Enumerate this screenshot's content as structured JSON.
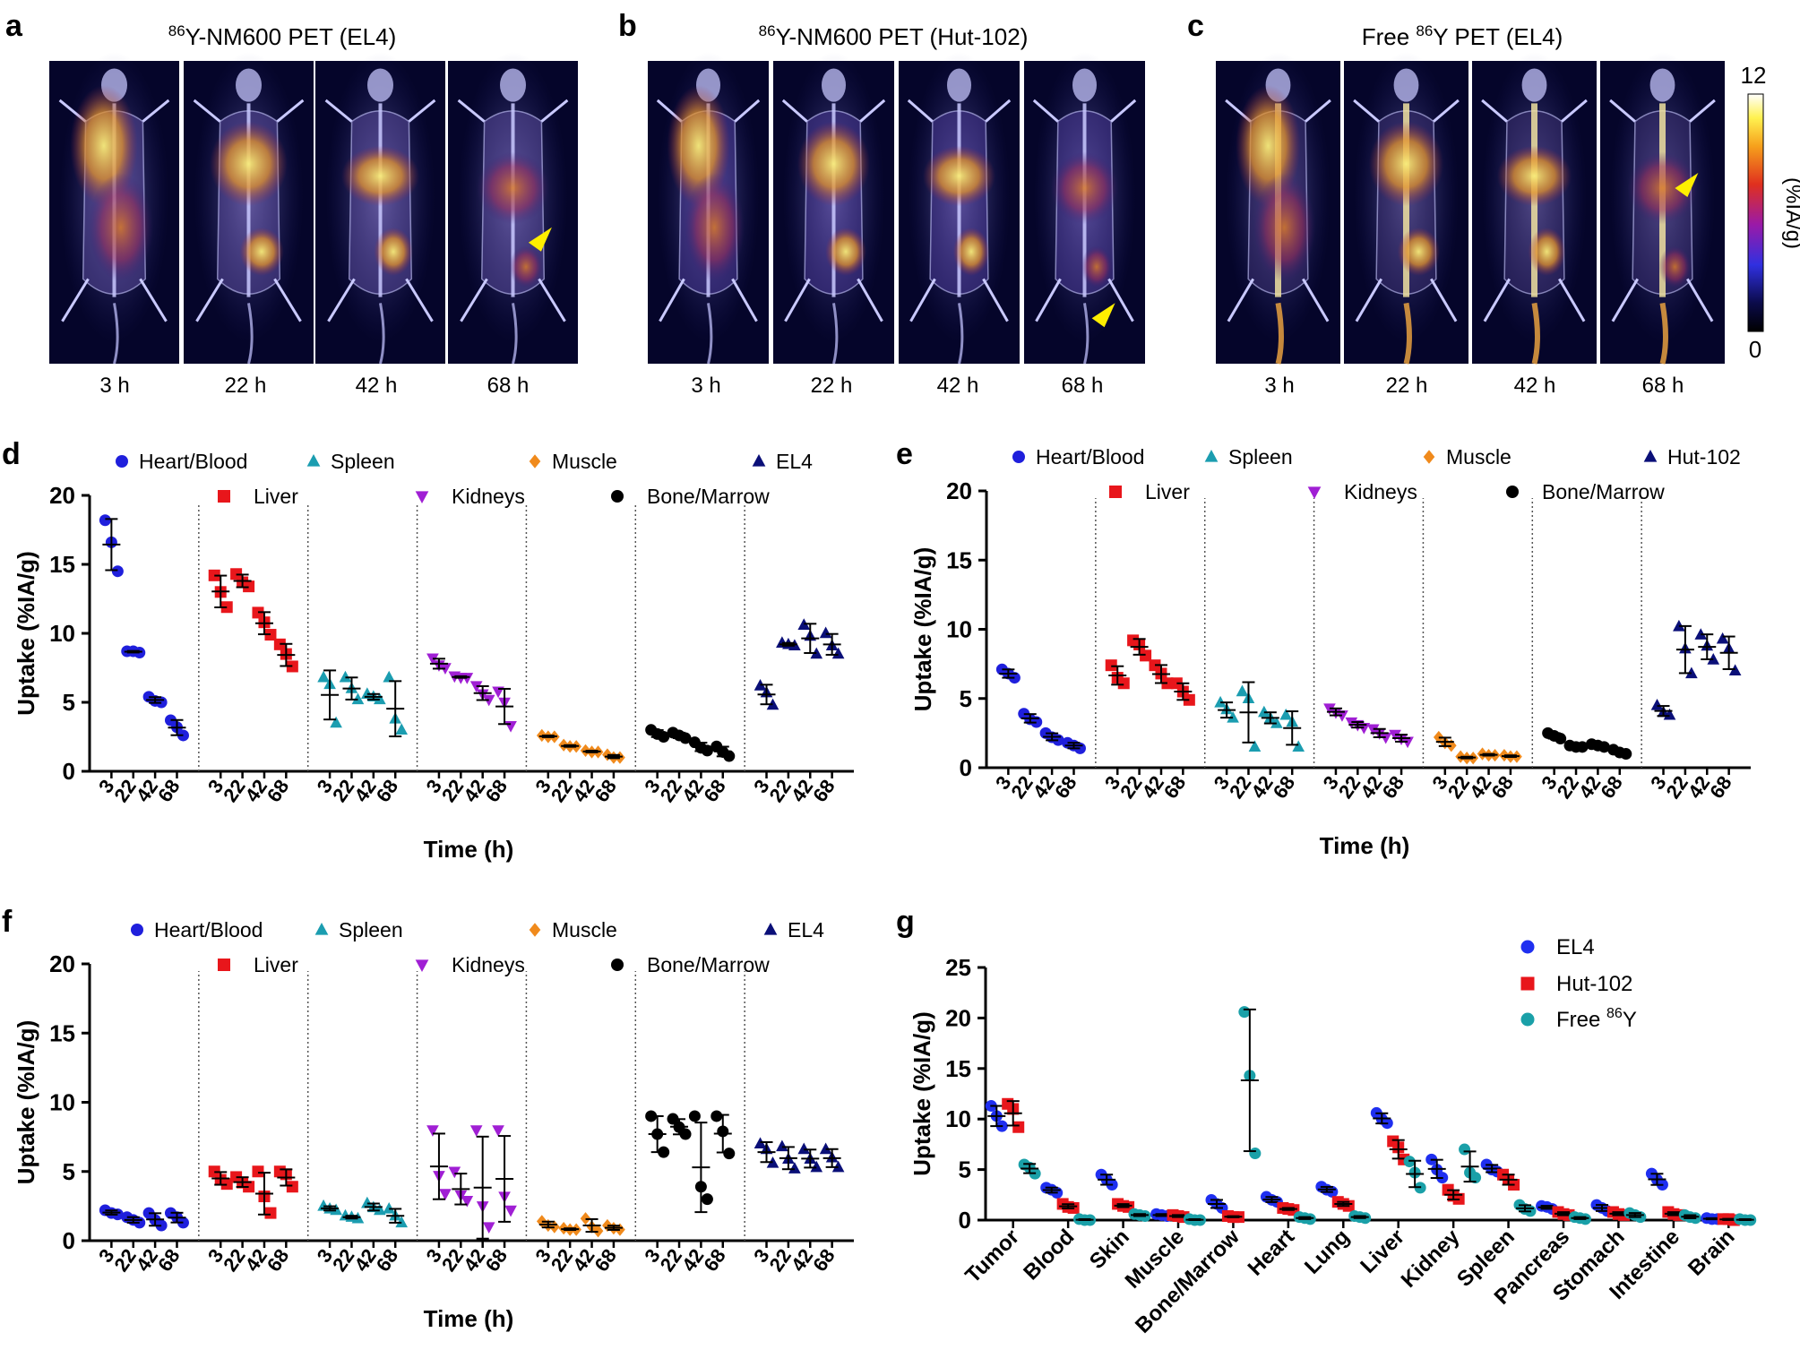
{
  "panel_letters": {
    "a": "a",
    "b": "b",
    "c": "c",
    "d": "d",
    "e": "e",
    "f": "f",
    "g": "g"
  },
  "pet_panels": [
    {
      "letter": "a",
      "title_sup": "86",
      "title_rest": "Y-NM600 PET (EL4)",
      "times": [
        "3 h",
        "22 h",
        "42 h",
        "68 h"
      ],
      "arrow_frame": 3,
      "tail": "normal"
    },
    {
      "letter": "b",
      "title_sup": "86",
      "title_rest": "Y-NM600 PET (Hut-102)",
      "times": [
        "3 h",
        "22 h",
        "42 h",
        "68 h"
      ],
      "arrow_frame": 3,
      "tail": "normal"
    },
    {
      "letter": "c",
      "title_pre": "Free ",
      "title_sup": "86",
      "title_rest": "Y PET (EL4)",
      "times": [
        "3 h",
        "22 h",
        "42 h",
        "68 h"
      ],
      "arrow_frame": 3,
      "tail": "bone"
    }
  ],
  "colorbar": {
    "max_label": "12",
    "min_label": "0",
    "label": "(%IA/g)"
  },
  "colors": {
    "heart": "#1f1fdc",
    "liver": "#e8161b",
    "spleen": "#1b9db0",
    "kidneys": "#a01fd4",
    "muscle": "#f08a1c",
    "bone": "#000000",
    "tumor": "#0a0f78",
    "el4": "#1f2ff0",
    "hut": "#e8161b",
    "free": "#1aa0a8",
    "arrow": "#ffee00"
  },
  "chart_data": [
    {
      "id": "d",
      "type": "scatter",
      "ylabel": "Uptake (%IA/g)",
      "xlabel": "Time (h)",
      "ylim": [
        0,
        20
      ],
      "yticks": [
        "0",
        "5",
        "10",
        "15",
        "20"
      ],
      "timepoints": [
        "3",
        "22",
        "42",
        "68"
      ],
      "legend_row1": [
        "Heart/Blood",
        "Spleen",
        "Muscle",
        "EL4"
      ],
      "legend_row2": [
        "Liver",
        "Kidneys",
        "Bone/Marrow"
      ],
      "series": [
        {
          "name": "Heart/Blood",
          "marker": "circle",
          "color": "#1f1fdc",
          "points": [
            [
              18.2,
              16.6,
              14.5
            ],
            [
              8.7,
              8.7,
              8.6
            ],
            [
              5.4,
              5.1,
              5.0
            ],
            [
              3.7,
              3.2,
              2.6
            ]
          ]
        },
        {
          "name": "Liver",
          "marker": "square",
          "color": "#e8161b",
          "points": [
            [
              14.2,
              13.0,
              11.9
            ],
            [
              14.3,
              13.7,
              13.4
            ],
            [
              11.5,
              10.8,
              9.9
            ],
            [
              9.2,
              8.5,
              7.6
            ]
          ]
        },
        {
          "name": "Spleen",
          "marker": "triangle",
          "color": "#1b9db0",
          "points": [
            [
              6.8,
              6.3,
              3.5
            ],
            [
              6.8,
              6.0,
              5.2
            ],
            [
              5.6,
              5.4,
              5.2
            ],
            [
              6.8,
              3.8,
              3.0
            ]
          ]
        },
        {
          "name": "Kidneys",
          "marker": "triangle-down",
          "color": "#a01fd4",
          "points": [
            [
              8.2,
              7.7,
              7.5
            ],
            [
              6.9,
              6.8,
              6.8
            ],
            [
              6.2,
              5.6,
              5.2
            ],
            [
              5.8,
              5.0,
              3.3
            ]
          ]
        },
        {
          "name": "Muscle",
          "marker": "diamond",
          "color": "#f08a1c",
          "points": [
            [
              2.6,
              2.5,
              2.5
            ],
            [
              1.9,
              1.8,
              1.8
            ],
            [
              1.5,
              1.4,
              1.4
            ],
            [
              1.2,
              1.0,
              1.0
            ]
          ]
        },
        {
          "name": "Bone/Marrow",
          "marker": "circle",
          "color": "#000000",
          "points": [
            [
              3.0,
              2.7,
              2.5
            ],
            [
              2.8,
              2.6,
              2.4
            ],
            [
              2.1,
              1.7,
              1.5
            ],
            [
              1.8,
              1.4,
              1.1
            ]
          ]
        },
        {
          "name": "EL4",
          "marker": "triangle",
          "color": "#0a0f78",
          "points": [
            [
              6.2,
              5.7,
              4.8
            ],
            [
              9.3,
              9.2,
              9.1
            ],
            [
              10.6,
              9.8,
              8.5
            ],
            [
              10.0,
              9.1,
              8.5
            ]
          ]
        }
      ]
    },
    {
      "id": "e",
      "type": "scatter",
      "ylabel": "Uptake (%IA/g)",
      "xlabel": "Time (h)",
      "ylim": [
        0,
        20
      ],
      "yticks": [
        "0",
        "5",
        "10",
        "15",
        "20"
      ],
      "timepoints": [
        "3",
        "22",
        "42",
        "68"
      ],
      "legend_row1": [
        "Heart/Blood",
        "Spleen",
        "Muscle",
        "Hut-102"
      ],
      "legend_row2": [
        "Liver",
        "Kidneys",
        "Bone/Marrow"
      ],
      "series": [
        {
          "name": "Heart/Blood",
          "marker": "circle",
          "color": "#1f1fdc",
          "points": [
            [
              7.1,
              6.8,
              6.5
            ],
            [
              3.9,
              3.5,
              3.3
            ],
            [
              2.5,
              2.2,
              2.0
            ],
            [
              1.8,
              1.6,
              1.4
            ]
          ]
        },
        {
          "name": "Liver",
          "marker": "square",
          "color": "#e8161b",
          "points": [
            [
              7.4,
              6.5,
              6.1
            ],
            [
              9.2,
              8.9,
              8.1
            ],
            [
              7.4,
              6.8,
              6.1
            ],
            [
              6.1,
              5.5,
              4.9
            ]
          ]
        },
        {
          "name": "Spleen",
          "marker": "triangle",
          "color": "#1b9db0",
          "points": [
            [
              4.7,
              4.2,
              3.6
            ],
            [
              5.5,
              5.0,
              1.5
            ],
            [
              4.0,
              3.6,
              3.2
            ],
            [
              3.8,
              3.3,
              1.5
            ]
          ]
        },
        {
          "name": "Kidneys",
          "marker": "triangle-down",
          "color": "#a01fd4",
          "points": [
            [
              4.3,
              4.0,
              3.8
            ],
            [
              3.3,
              3.1,
              2.9
            ],
            [
              2.8,
              2.5,
              2.2
            ],
            [
              2.4,
              2.1,
              1.9
            ]
          ]
        },
        {
          "name": "Muscle",
          "marker": "diamond",
          "color": "#f08a1c",
          "points": [
            [
              2.2,
              1.8,
              1.6
            ],
            [
              0.8,
              0.7,
              0.7
            ],
            [
              1.0,
              0.9,
              0.9
            ],
            [
              0.9,
              0.8,
              0.8
            ]
          ]
        },
        {
          "name": "Bone/Marrow",
          "marker": "circle",
          "color": "#000000",
          "points": [
            [
              2.5,
              2.3,
              2.1
            ],
            [
              1.6,
              1.5,
              1.5
            ],
            [
              1.7,
              1.6,
              1.5
            ],
            [
              1.3,
              1.1,
              1.0
            ]
          ]
        },
        {
          "name": "Hut-102",
          "marker": "triangle",
          "color": "#0a0f78",
          "points": [
            [
              4.5,
              4.0,
              3.8
            ],
            [
              10.2,
              8.6,
              6.8
            ],
            [
              9.6,
              8.8,
              7.8
            ],
            [
              9.3,
              8.6,
              7.0
            ]
          ]
        }
      ]
    },
    {
      "id": "f",
      "type": "scatter",
      "ylabel": "Uptake (%IA/g)",
      "xlabel": "Time (h)",
      "ylim": [
        0,
        20
      ],
      "yticks": [
        "0",
        "5",
        "10",
        "15",
        "20"
      ],
      "timepoints": [
        "3",
        "22",
        "42",
        "68"
      ],
      "legend_row1": [
        "Heart/Blood",
        "Spleen",
        "Muscle",
        "EL4"
      ],
      "legend_row2": [
        "Liver",
        "Kidneys",
        "Bone/Marrow"
      ],
      "series": [
        {
          "name": "Heart/Blood",
          "marker": "circle",
          "color": "#1f1fdc",
          "points": [
            [
              2.2,
              2.0,
              1.9
            ],
            [
              1.7,
              1.5,
              1.3
            ],
            [
              2.0,
              1.5,
              1.1
            ],
            [
              2.0,
              1.7,
              1.3
            ]
          ]
        },
        {
          "name": "Liver",
          "marker": "square",
          "color": "#e8161b",
          "points": [
            [
              5.0,
              4.4,
              4.1
            ],
            [
              4.6,
              4.2,
              3.9
            ],
            [
              5.0,
              3.2,
              2.0
            ],
            [
              5.0,
              4.8,
              3.9
            ]
          ]
        },
        {
          "name": "Spleen",
          "marker": "triangle",
          "color": "#1b9db0",
          "points": [
            [
              2.5,
              2.3,
              2.2
            ],
            [
              1.8,
              1.7,
              1.6
            ],
            [
              2.7,
              2.4,
              2.2
            ],
            [
              2.3,
              1.8,
              1.3
            ]
          ]
        },
        {
          "name": "Kidneys",
          "marker": "triangle-down",
          "color": "#a01fd4",
          "points": [
            [
              8.0,
              4.7,
              3.4
            ],
            [
              5.0,
              3.3,
              2.9
            ],
            [
              8.0,
              2.5,
              1.0
            ],
            [
              8.0,
              3.2,
              2.2
            ]
          ]
        },
        {
          "name": "Muscle",
          "marker": "diamond",
          "color": "#f08a1c",
          "points": [
            [
              1.4,
              1.1,
              1.0
            ],
            [
              0.9,
              0.8,
              0.8
            ],
            [
              1.6,
              1.0,
              0.7
            ],
            [
              1.1,
              0.9,
              0.8
            ]
          ]
        },
        {
          "name": "Bone/Marrow",
          "marker": "circle",
          "color": "#000000",
          "points": [
            [
              9.0,
              7.7,
              6.4
            ],
            [
              8.8,
              8.2,
              7.7
            ],
            [
              9.0,
              3.9,
              3.0
            ],
            [
              9.0,
              7.9,
              6.3
            ]
          ]
        },
        {
          "name": "EL4",
          "marker": "triangle",
          "color": "#0a0f78",
          "points": [
            [
              7.0,
              6.6,
              5.6
            ],
            [
              6.8,
              5.9,
              5.2
            ],
            [
              6.6,
              5.9,
              5.3
            ],
            [
              6.6,
              6.0,
              5.3
            ]
          ]
        }
      ]
    },
    {
      "id": "g",
      "type": "scatter",
      "ylabel": "Uptake (%IA/g)",
      "ylim": [
        0,
        25
      ],
      "yticks": [
        "0",
        "5",
        "10",
        "15",
        "20",
        "25"
      ],
      "categories": [
        "Tumor",
        "Blood",
        "Skin",
        "Muscle",
        "Bone/Marrow",
        "Heart",
        "Lung",
        "Liver",
        "Kidney",
        "Spleen",
        "Pancreas",
        "Stomach",
        "Intestine",
        "Brain"
      ],
      "legend": [
        {
          "label": "EL4",
          "sup": ""
        },
        {
          "label": "Hut-102",
          "sup": ""
        },
        {
          "label": "Free ",
          "sup": "86",
          "tail": "Y"
        }
      ],
      "series": [
        {
          "name": "EL4",
          "marker": "circle",
          "color": "#1f2ff0",
          "values": [
            [
              11.3,
              10.3,
              9.3
            ],
            [
              3.2,
              3.0,
              2.7
            ],
            [
              4.5,
              4.0,
              3.5
            ],
            [
              0.6,
              0.5,
              0.4
            ],
            [
              2.0,
              1.6,
              1.2
            ],
            [
              2.3,
              2.0,
              1.8
            ],
            [
              3.3,
              3.0,
              2.8
            ],
            [
              10.6,
              10.0,
              9.6
            ],
            [
              6.0,
              5.0,
              4.2
            ],
            [
              5.5,
              5.0,
              4.8
            ],
            [
              1.4,
              1.3,
              1.1
            ],
            [
              1.5,
              1.2,
              0.9
            ],
            [
              4.6,
              4.0,
              3.5
            ],
            [
              0.2,
              0.1,
              0.1
            ]
          ]
        },
        {
          "name": "Hut-102",
          "marker": "square",
          "color": "#e8161b",
          "values": [
            [
              11.5,
              11.0,
              9.2
            ],
            [
              1.6,
              1.3,
              1.2
            ],
            [
              1.6,
              1.4,
              1.3
            ],
            [
              0.5,
              0.4,
              0.3
            ],
            [
              0.4,
              0.3,
              0.3
            ],
            [
              1.2,
              1.1,
              1.0
            ],
            [
              1.8,
              1.6,
              1.4
            ],
            [
              7.8,
              7.2,
              6.0
            ],
            [
              3.0,
              2.4,
              2.1
            ],
            [
              4.5,
              4.0,
              3.5
            ],
            [
              0.8,
              0.6,
              0.5
            ],
            [
              0.8,
              0.6,
              0.5
            ],
            [
              0.8,
              0.6,
              0.5
            ],
            [
              0.1,
              0.1,
              0.0
            ]
          ]
        },
        {
          "name": "Free 86Y",
          "marker": "circle",
          "color": "#1aa0a8",
          "values": [
            [
              5.5,
              5.2,
              4.6
            ],
            [
              0.1,
              0.0,
              0.0
            ],
            [
              0.6,
              0.5,
              0.4
            ],
            [
              0.1,
              0.0,
              0.0
            ],
            [
              20.6,
              14.3,
              6.6
            ],
            [
              0.3,
              0.2,
              0.1
            ],
            [
              0.4,
              0.3,
              0.2
            ],
            [
              5.8,
              4.7,
              3.2
            ],
            [
              7.0,
              4.7,
              4.2
            ],
            [
              1.5,
              1.1,
              0.9
            ],
            [
              0.3,
              0.2,
              0.1
            ],
            [
              0.7,
              0.5,
              0.3
            ],
            [
              0.5,
              0.3,
              0.2
            ],
            [
              0.1,
              0.0,
              0.0
            ]
          ]
        }
      ]
    }
  ]
}
